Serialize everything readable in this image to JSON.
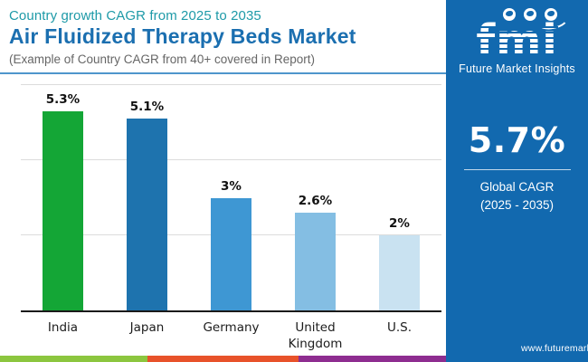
{
  "header": {
    "eyebrow": "Country growth CAGR from 2025 to 2035",
    "title": "Air Fluidized Therapy Beds Market",
    "subtitle": "(Example of Country CAGR from 40+ covered in Report)"
  },
  "sidebar": {
    "logo": {
      "text": "fmi",
      "tagline": "Future Market Insights",
      "globe_icon_count": 3
    },
    "global_cagr": {
      "value": "5.7%",
      "label_line1": "Global CAGR",
      "label_line2": "(2025 - 2035)"
    },
    "website": "www.futuremarketinsights.com"
  },
  "chart_data": {
    "type": "bar",
    "title": "Air Fluidized Therapy Beds Market — Country growth CAGR from 2025 to 2035",
    "categories": [
      "India",
      "Japan",
      "Germany",
      "United Kingdom",
      "U.S."
    ],
    "values": [
      5.3,
      5.1,
      3,
      2.6,
      2
    ],
    "value_labels": [
      "5.3%",
      "5.1%",
      "3%",
      "2.6%",
      "2%"
    ],
    "bar_colors": [
      "#14A636",
      "#1E73AE",
      "#3E97D3",
      "#84BEE3",
      "#C9E2F1"
    ],
    "xlabel": "",
    "ylabel": "",
    "ylim": [
      0,
      6.2
    ],
    "gridlines_at": [
      2,
      4,
      6
    ],
    "legend": "none",
    "orientation": "vertical"
  },
  "colors": {
    "sidebar_bg": "#1269AF",
    "header_eyebrow": "#1E9AA8",
    "header_title": "#1B6FB0",
    "header_subtitle": "#666666",
    "header_divider": "#4E96CC",
    "axis": "#1A1A1A",
    "gridline": "#DCDCDC",
    "stripe_segments": [
      "#8CC63F",
      "#E8522A",
      "#8E2D90"
    ]
  }
}
